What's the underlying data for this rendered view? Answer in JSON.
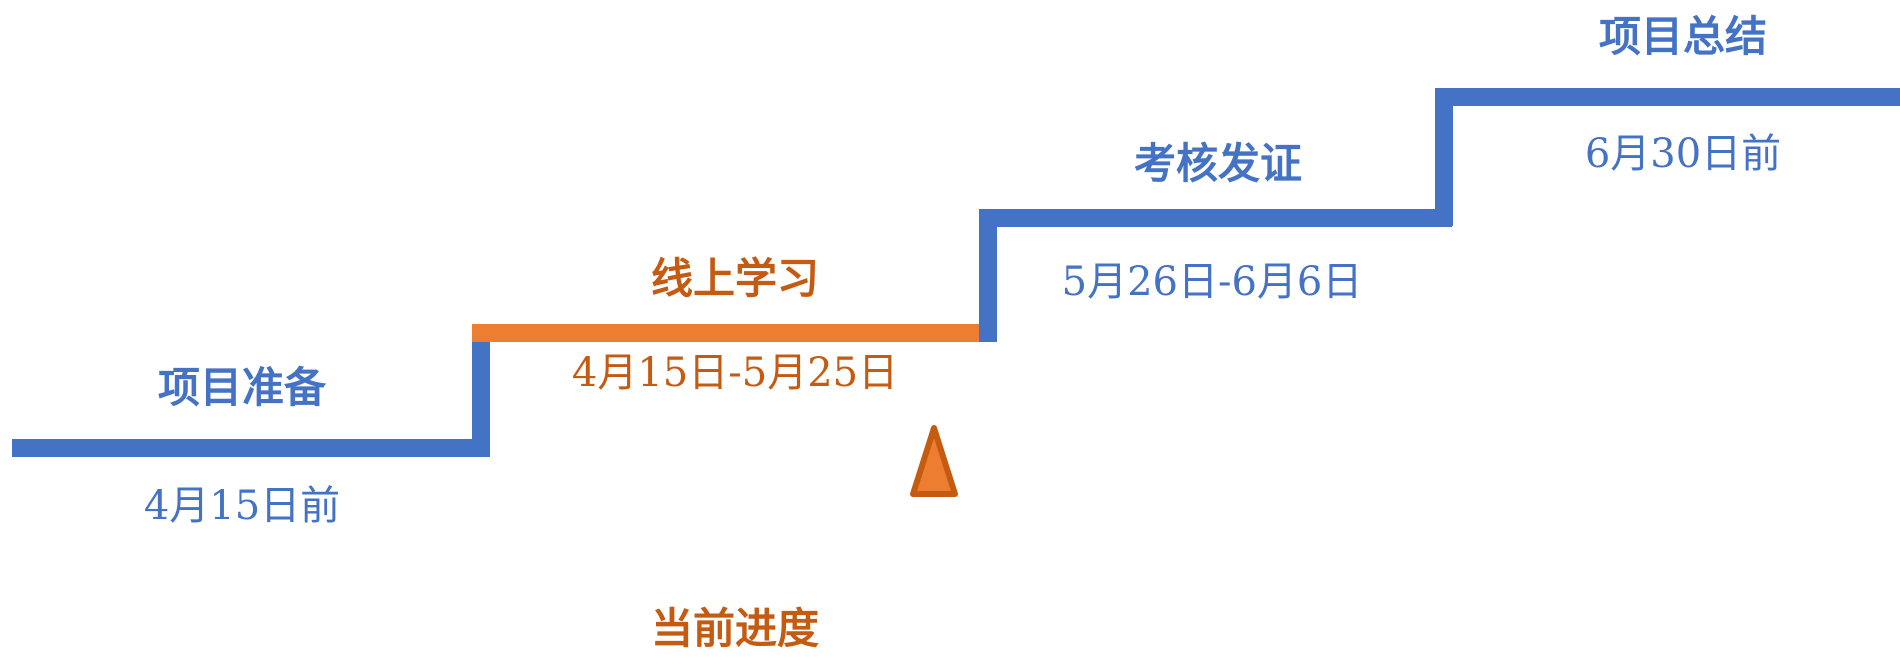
{
  "colors": {
    "pending": "#4472C4",
    "active": "#ED7D31",
    "active_text": "#C55A11",
    "marker_stroke": "#C55A11"
  },
  "stages": [
    {
      "title": "项目准备",
      "date": "4月15日前",
      "status": "pending"
    },
    {
      "title": "线上学习",
      "date": "4月15日-5月25日",
      "status": "active"
    },
    {
      "title": "考核发证",
      "date": "5月26日-6月6日",
      "status": "pending"
    },
    {
      "title": "项目总结",
      "date": "6月30日前",
      "status": "pending"
    }
  ],
  "progress": {
    "label": "当前进度",
    "current_stage": "线上学习"
  }
}
